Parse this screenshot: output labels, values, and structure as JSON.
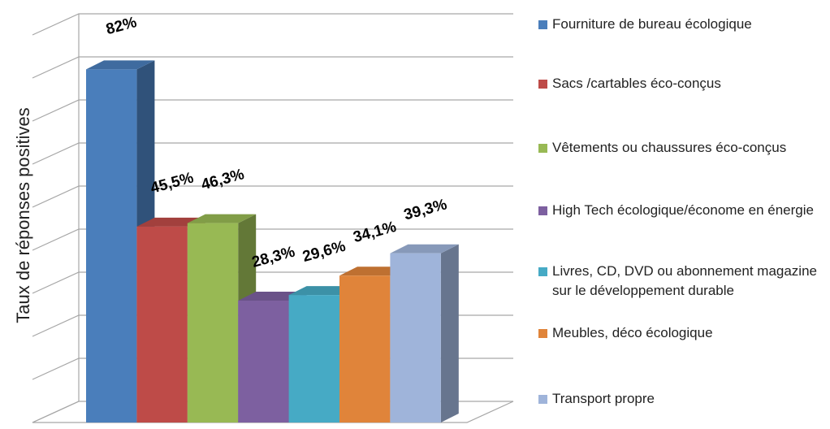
{
  "chart_data": {
    "type": "bar",
    "ylabel": "Taux de réponses positives",
    "ylim": [
      0,
      90
    ],
    "yticks": [
      0,
      10,
      20,
      30,
      40,
      50,
      60,
      70,
      80,
      90
    ],
    "grid": true,
    "legend": "right",
    "series": [
      {
        "name": "Fourniture de bureau écologique",
        "color": "#4a7ebb",
        "values": [
          82
        ],
        "value_labels": [
          "82%"
        ]
      },
      {
        "name": "Sacs /cartables éco-conçus",
        "color": "#be4b48",
        "values": [
          45.5
        ],
        "value_labels": [
          "45,5%"
        ]
      },
      {
        "name": "Vêtements ou chaussures éco-conçus",
        "color": "#98b954",
        "values": [
          46.3
        ],
        "value_labels": [
          "46,3%"
        ]
      },
      {
        "name": "High Tech écologique/économe en énergie",
        "color": "#7d60a0",
        "values": [
          28.3
        ],
        "value_labels": [
          "28,3%"
        ]
      },
      {
        "name": "Livres, CD, DVD ou abonnement magazine sur le développement durable",
        "color": "#46aac5",
        "values": [
          29.6
        ],
        "value_labels": [
          "29,6%"
        ]
      },
      {
        "name": "Meubles, déco écologique",
        "color": "#e0843a",
        "values": [
          34.1
        ],
        "value_labels": [
          "34,1%"
        ]
      },
      {
        "name": "Transport propre",
        "color": "#9fb4da",
        "values": [
          39.3
        ],
        "value_labels": [
          "39,3%"
        ]
      }
    ]
  }
}
